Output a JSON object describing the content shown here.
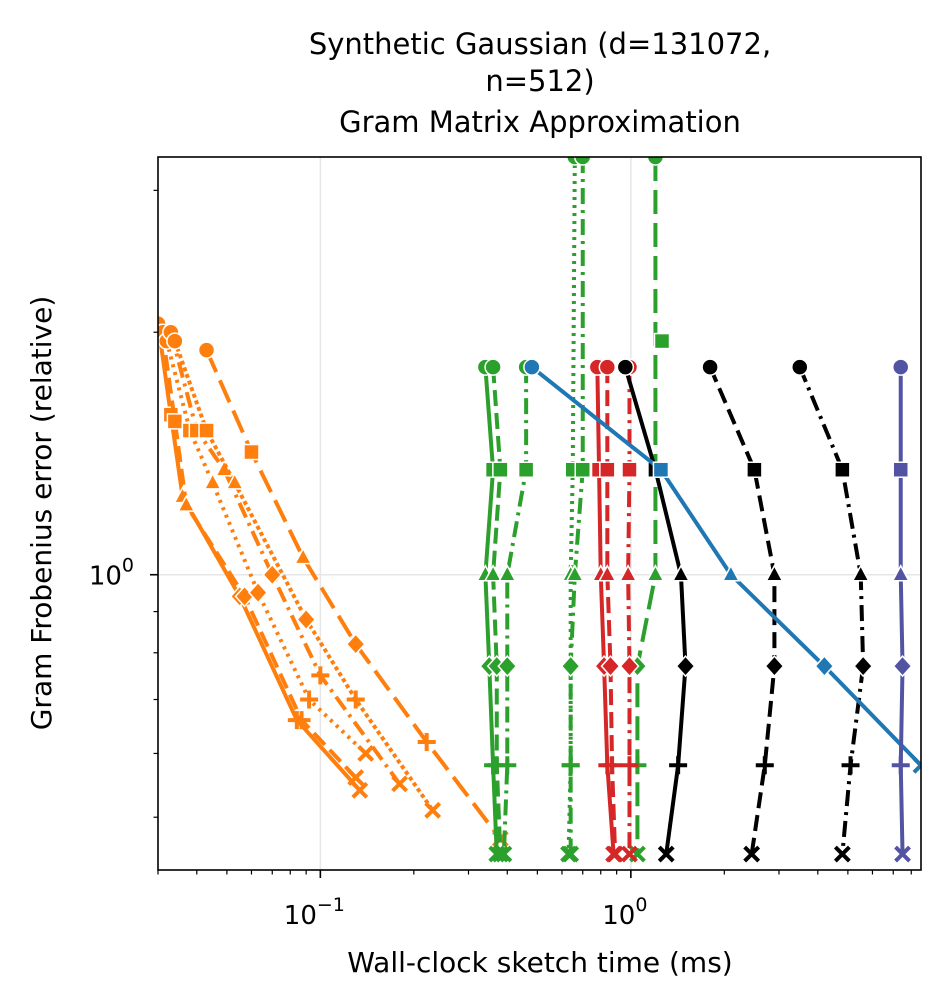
{
  "chart_data": {
    "type": "line",
    "title": [
      "Synthetic Gaussian (d=131072,",
      "n=512)",
      "Gram Matrix Approximation"
    ],
    "xlabel": "Wall-clock sketch time (ms)",
    "ylabel": "Gram Frobenius error (relative)",
    "xscale": "log",
    "yscale": "log",
    "xlim": [
      0.03,
      8.6
    ],
    "ylim": [
      0.43,
      3.3
    ],
    "grid": true,
    "x_ticks": [
      {
        "value": 0.1,
        "base": "10",
        "exp": "−1"
      },
      {
        "value": 1,
        "base": "10",
        "exp": "0"
      }
    ],
    "y_ticks": [
      {
        "value": 1,
        "base": "10",
        "exp": "0"
      }
    ],
    "y_levels": [
      1.81,
      1.35,
      1.0,
      0.77,
      0.58,
      0.45
    ],
    "markers": [
      "circle",
      "square",
      "triangle",
      "diamond",
      "plus",
      "x"
    ],
    "colors": {
      "orange": "#ff7f0e",
      "green": "#2ca02c",
      "red": "#d62728",
      "black": "#000000",
      "blue": "#1f77b4",
      "purple": "#5254a3"
    },
    "series": [
      {
        "color": "orange",
        "dash": "solid",
        "markers": [
          "circle",
          "square",
          "triangle",
          "diamond",
          "plus",
          "x"
        ],
        "x": [
          0.03,
          0.033,
          0.036,
          0.055,
          0.084,
          0.134
        ],
        "y": [
          2.05,
          1.58,
          1.25,
          0.94,
          0.66,
          0.54
        ]
      },
      {
        "color": "orange",
        "dash": "dash",
        "markers": [
          "circle",
          "square",
          "triangle",
          "diamond",
          "plus",
          "x"
        ],
        "x": [
          0.031,
          0.034,
          0.037,
          0.057,
          0.087,
          0.13
        ],
        "y": [
          2.0,
          1.55,
          1.22,
          0.94,
          0.66,
          0.56
        ]
      },
      {
        "color": "orange",
        "dash": "dot",
        "markers": [
          "circle",
          "square",
          "triangle",
          "diamond",
          "plus",
          "x"
        ],
        "x": [
          0.032,
          0.038,
          0.045,
          0.063,
          0.092,
          0.14
        ],
        "y": [
          1.95,
          1.51,
          1.3,
          0.95,
          0.7,
          0.6
        ]
      },
      {
        "color": "orange",
        "dash": "dashdot",
        "markers": [
          "circle",
          "square",
          "triangle",
          "diamond",
          "plus",
          "x"
        ],
        "x": [
          0.033,
          0.04,
          0.049,
          0.07,
          0.1,
          0.18
        ],
        "y": [
          2.0,
          1.51,
          1.35,
          1.0,
          0.75,
          0.55
        ]
      },
      {
        "color": "orange",
        "dash": "dense-dot",
        "markers": [
          "circle",
          "square",
          "triangle",
          "diamond",
          "plus",
          "x"
        ],
        "x": [
          0.034,
          0.043,
          0.053,
          0.09,
          0.13,
          0.23
        ],
        "y": [
          1.95,
          1.51,
          1.3,
          0.88,
          0.7,
          0.51
        ]
      },
      {
        "color": "orange",
        "dash": "longdash",
        "markers": [
          "circle",
          "square",
          "triangle",
          "diamond",
          "plus",
          "x"
        ],
        "x": [
          0.043,
          0.06,
          0.088,
          0.13,
          0.22,
          0.38
        ],
        "y": [
          1.9,
          1.42,
          1.05,
          0.82,
          0.62,
          0.47
        ]
      },
      {
        "color": "green",
        "dash": "solid",
        "markers": [
          "circle",
          "square",
          "triangle",
          "diamond",
          "plus",
          "x"
        ],
        "x": [
          0.34,
          0.36,
          0.34,
          0.35,
          0.36,
          0.37
        ],
        "y": [
          1.81,
          1.35,
          1.0,
          0.77,
          0.58,
          0.45
        ]
      },
      {
        "color": "green",
        "dash": "dash",
        "markers": [
          "circle",
          "square",
          "triangle",
          "diamond",
          "plus",
          "x"
        ],
        "x": [
          0.36,
          0.38,
          0.36,
          0.37,
          0.37,
          0.38
        ],
        "y": [
          1.81,
          1.35,
          1.0,
          0.77,
          0.58,
          0.45
        ]
      },
      {
        "color": "green",
        "dash": "dashdot",
        "markers": [
          "circle",
          "square",
          "triangle",
          "diamond",
          "plus",
          "x"
        ],
        "x": [
          0.46,
          0.46,
          0.4,
          0.4,
          0.4,
          0.39
        ],
        "y": [
          1.81,
          1.35,
          1.0,
          0.77,
          0.58,
          0.45
        ]
      },
      {
        "color": "green",
        "dash": "dot",
        "markers": [
          "circle",
          "square",
          "triangle",
          "diamond",
          "plus",
          "x"
        ],
        "x": [
          0.66,
          0.65,
          0.64,
          0.64,
          0.64,
          0.63
        ],
        "y": [
          3.3,
          1.35,
          1.0,
          0.77,
          0.58,
          0.45
        ]
      },
      {
        "color": "green",
        "dash": "dashdot",
        "markers": [
          "circle",
          "square",
          "triangle",
          "diamond",
          "plus",
          "x"
        ],
        "x": [
          0.7,
          0.7,
          0.66,
          0.64,
          0.64,
          0.64
        ],
        "y": [
          3.3,
          1.35,
          1.0,
          0.77,
          0.58,
          0.45
        ]
      },
      {
        "color": "green",
        "dash": "longdash",
        "markers": [
          "circle",
          "square",
          "triangle",
          "diamond",
          "plus",
          "x"
        ],
        "x": [
          1.2,
          1.2,
          1.2,
          1.05,
          1.05,
          1.05
        ],
        "y": [
          3.3,
          1.35,
          1.0,
          0.77,
          0.58,
          0.45
        ]
      },
      {
        "color": "green",
        "dash": "dash",
        "markers": [
          "square"
        ],
        "x": [
          1.26
        ],
        "y": [
          1.95
        ]
      },
      {
        "color": "red",
        "dash": "solid",
        "markers": [
          "circle",
          "square",
          "triangle",
          "diamond",
          "plus",
          "x"
        ],
        "x": [
          0.78,
          0.79,
          0.8,
          0.82,
          0.84,
          0.88
        ],
        "y": [
          1.81,
          1.35,
          1.0,
          0.77,
          0.58,
          0.45
        ]
      },
      {
        "color": "red",
        "dash": "dash",
        "markers": [
          "circle",
          "square",
          "triangle",
          "diamond",
          "plus",
          "x"
        ],
        "x": [
          0.84,
          0.84,
          0.84,
          0.86,
          0.87,
          0.89
        ],
        "y": [
          1.81,
          1.35,
          1.0,
          0.77,
          0.58,
          0.45
        ]
      },
      {
        "color": "red",
        "dash": "dashdot",
        "markers": [
          "circle",
          "square",
          "triangle",
          "diamond",
          "plus",
          "x"
        ],
        "x": [
          0.99,
          0.99,
          0.98,
          0.99,
          0.99,
          0.99
        ],
        "y": [
          1.81,
          1.35,
          1.0,
          0.77,
          0.58,
          0.45
        ]
      },
      {
        "color": "black",
        "dash": "solid",
        "markers": [
          "circle",
          "square",
          "triangle",
          "diamond",
          "plus",
          "x"
        ],
        "x": [
          0.96,
          1.2,
          1.45,
          1.5,
          1.42,
          1.3
        ],
        "y": [
          1.81,
          1.35,
          1.0,
          0.77,
          0.58,
          0.45
        ]
      },
      {
        "color": "black",
        "dash": "dash",
        "markers": [
          "circle",
          "square",
          "triangle",
          "diamond",
          "plus",
          "x"
        ],
        "x": [
          1.8,
          2.5,
          2.9,
          2.9,
          2.7,
          2.45
        ],
        "y": [
          1.81,
          1.35,
          1.0,
          0.77,
          0.58,
          0.45
        ]
      },
      {
        "color": "black",
        "dash": "dashdot",
        "markers": [
          "circle",
          "square",
          "triangle",
          "diamond",
          "plus",
          "x"
        ],
        "x": [
          3.5,
          4.8,
          5.5,
          5.6,
          5.1,
          4.8
        ],
        "y": [
          1.81,
          1.35,
          1.0,
          0.77,
          0.58,
          0.45
        ]
      },
      {
        "color": "blue",
        "dash": "solid",
        "markers": [
          "circle",
          "square",
          "triangle",
          "diamond",
          "x"
        ],
        "x": [
          0.48,
          1.25,
          2.1,
          4.2,
          8.6
        ],
        "y": [
          1.81,
          1.35,
          1.0,
          0.77,
          0.58
        ]
      },
      {
        "color": "purple",
        "dash": "solid",
        "markers": [
          "circle",
          "square",
          "triangle",
          "diamond",
          "plus",
          "x"
        ],
        "x": [
          7.4,
          7.4,
          7.4,
          7.5,
          7.4,
          7.5
        ],
        "y": [
          1.81,
          1.35,
          1.0,
          0.77,
          0.58,
          0.45
        ]
      }
    ]
  }
}
